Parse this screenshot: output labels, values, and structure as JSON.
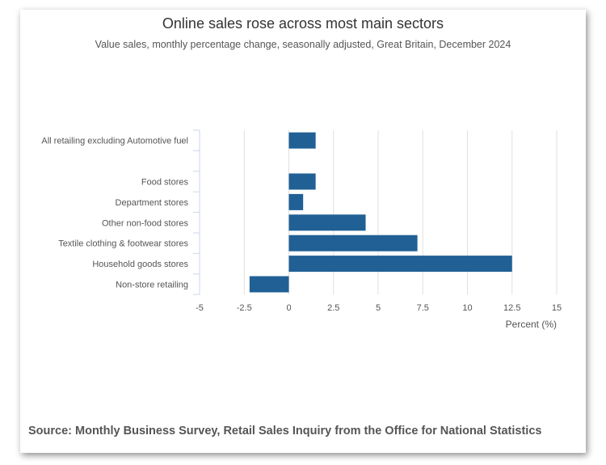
{
  "chart_data": {
    "type": "bar",
    "orientation": "horizontal",
    "title": "Online sales rose across most main sectors",
    "subtitle": "Value sales, monthly percentage change, seasonally adjusted, Great Britain, December 2024",
    "categories": [
      "All retailing excluding Automotive fuel",
      "",
      "Food stores",
      "Department stores",
      "Other non-food stores",
      "Textile clothing & footwear stores",
      "Household goods stores",
      "Non-store retailing"
    ],
    "values": [
      1.5,
      null,
      1.5,
      0.8,
      4.3,
      7.2,
      12.5,
      -2.2
    ],
    "xlabel": "Percent (%)",
    "ylabel": "",
    "xlim": [
      -5,
      15
    ],
    "xticks": [
      "-5",
      "-2.5",
      "0",
      "2.5",
      "5",
      "7.5",
      "10",
      "12.5",
      "15"
    ],
    "grid": true,
    "bar_color": "#206095",
    "source": "Source: Monthly Business Survey, Retail Sales Inquiry from the Office for National Statistics"
  }
}
